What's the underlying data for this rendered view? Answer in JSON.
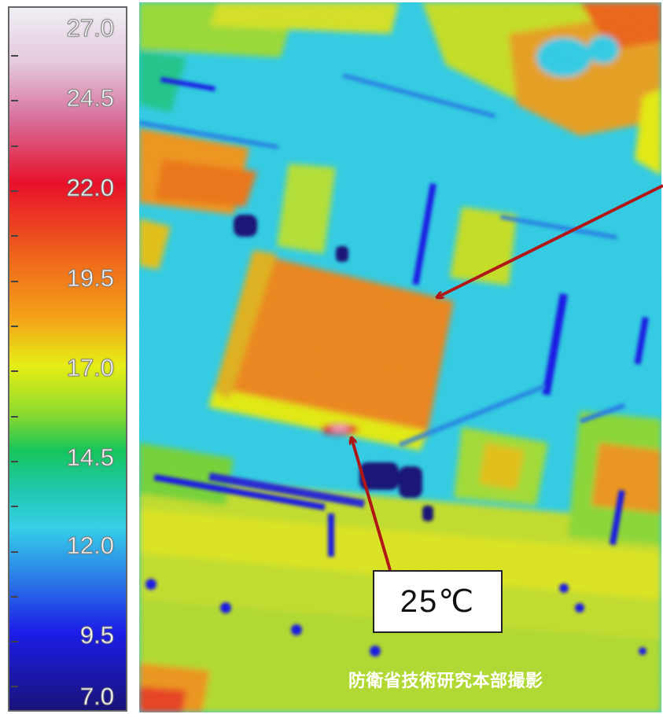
{
  "legend": {
    "labels": [
      "27.0",
      "24.5",
      "22.0",
      "19.5",
      "17.0",
      "14.5",
      "12.0",
      "9.5",
      "7.0"
    ]
  },
  "annotation": {
    "temperature": "25℃"
  },
  "credit": "防衛省技術研究本部撮影",
  "colors": {
    "arrow": "#b01818",
    "hot": "#f3a11a",
    "warm": "#e6ee15",
    "cool": "#36d0e8",
    "cold": "#1c1de8"
  }
}
